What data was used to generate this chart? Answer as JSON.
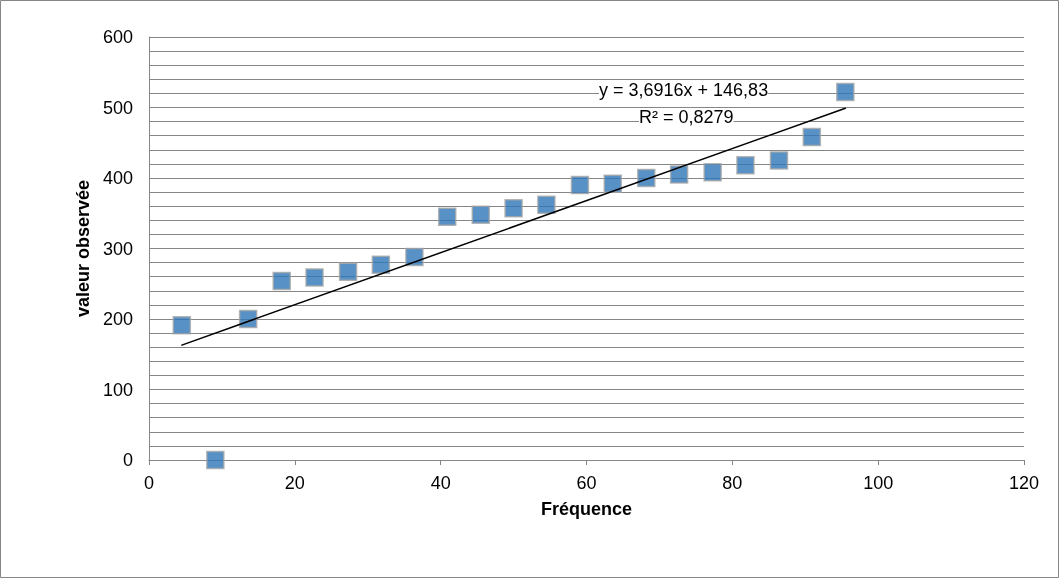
{
  "chart_data": {
    "type": "scatter",
    "xlabel": "Fréquence",
    "ylabel": "valeur observée",
    "annotations": [
      "y = 3,6916x + 146,83",
      "R² = 0,8279"
    ],
    "series": [
      {
        "marker": "square",
        "color": "#2e75b6",
        "x": [
          4.5,
          9.1,
          13.6,
          18.2,
          22.7,
          27.3,
          31.8,
          36.4,
          40.9,
          45.5,
          50,
          54.5,
          59.1,
          63.6,
          68.2,
          72.7,
          77.3,
          81.8,
          86.4,
          90.9,
          95.5
        ],
        "values": [
          191,
          0,
          200,
          254,
          259,
          267,
          277,
          288,
          345,
          348,
          357,
          362,
          390,
          392,
          400,
          405,
          408,
          418,
          425,
          458,
          522
        ]
      },
      {
        "type": "line",
        "marker": "none",
        "color": "#000000",
        "x": [
          4.5,
          95.5
        ],
        "values": [
          163,
          499
        ]
      }
    ],
    "xlim": [
      0,
      120
    ],
    "xticks": [
      0,
      20,
      40,
      60,
      80,
      100,
      120
    ],
    "ylim": [
      0,
      600
    ],
    "yticks": [
      0,
      {
        "value": 20,
        "label": null
      },
      {
        "value": 40,
        "label": null
      },
      {
        "value": 60,
        "label": null
      },
      {
        "value": 80,
        "label": null
      },
      100,
      {
        "value": 120,
        "label": null
      },
      {
        "value": 140,
        "label": null
      },
      {
        "value": 160,
        "label": null
      },
      {
        "value": 180,
        "label": null
      },
      200,
      {
        "value": 220,
        "label": null
      },
      {
        "value": 240,
        "label": null
      },
      {
        "value": 260,
        "label": null
      },
      {
        "value": 280,
        "label": null
      },
      300,
      {
        "value": 320,
        "label": null
      },
      {
        "value": 340,
        "label": null
      },
      {
        "value": 360,
        "label": null
      },
      {
        "value": 380,
        "label": null
      },
      400,
      {
        "value": 420,
        "label": null
      },
      {
        "value": 440,
        "label": null
      },
      {
        "value": 460,
        "label": null
      },
      {
        "value": 480,
        "label": null
      },
      500,
      {
        "value": 520,
        "label": null
      },
      {
        "value": 540,
        "label": null
      },
      {
        "value": 560,
        "label": null
      },
      {
        "value": 580,
        "label": null
      },
      600
    ],
    "grid": "y"
  }
}
